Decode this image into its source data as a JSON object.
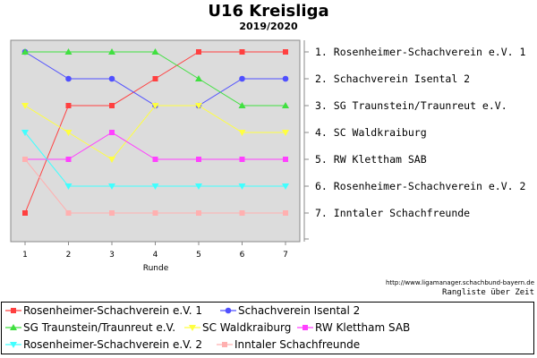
{
  "chart_data": {
    "type": "line",
    "title": "U16 Kreisliga",
    "subtitle": "2019/2020",
    "xlabel": "Runde",
    "x": [
      1,
      2,
      3,
      4,
      5,
      6,
      7
    ],
    "ylim": [
      1,
      7
    ],
    "y_inverted": true,
    "grid": false,
    "legend_position": "bottom",
    "right_labels": [
      "1. Rosenheimer-Schachverein e.V. 1",
      "2. Schachverein Isental 2",
      "3. SG Traunstein/Traunreut e.V.",
      "4. SC Waldkraiburg",
      "5. RW Klettham SAB",
      "6. Rosenheimer-Schachverein e.V. 2",
      "7. Inntaler Schachfreunde"
    ],
    "series": [
      {
        "name": "Rosenheimer-Schachverein e.V. 1",
        "values": [
          7,
          3,
          3,
          2,
          1,
          1,
          1
        ],
        "color": "#ff4040",
        "marker": "square"
      },
      {
        "name": "Schachverein Isental 2",
        "values": [
          1,
          2,
          2,
          3,
          3,
          2,
          2
        ],
        "color": "#5050ff",
        "marker": "circle"
      },
      {
        "name": "SG Traunstein/Traunreut e.V.",
        "values": [
          1,
          1,
          1,
          1,
          2,
          3,
          3
        ],
        "color": "#40e040",
        "marker": "triangle-up"
      },
      {
        "name": "SC Waldkraiburg",
        "values": [
          3,
          4,
          5,
          3,
          3,
          4,
          4
        ],
        "color": "#ffff40",
        "marker": "triangle-down"
      },
      {
        "name": "RW Klettham SAB",
        "values": [
          5,
          5,
          4,
          5,
          5,
          5,
          5
        ],
        "color": "#ff40ff",
        "marker": "square"
      },
      {
        "name": "Rosenheimer-Schachverein e.V. 2",
        "values": [
          4,
          6,
          6,
          6,
          6,
          6,
          6
        ],
        "color": "#40ffff",
        "marker": "triangle-down"
      },
      {
        "name": "Inntaler Schachfreunde",
        "values": [
          5,
          7,
          7,
          7,
          7,
          7,
          7
        ],
        "color": "#ffb0b0",
        "marker": "square"
      }
    ]
  },
  "footer": {
    "source": "http://www.ligamanager.schachbund-bayern.de",
    "caption": "Rangliste über Zeit"
  }
}
